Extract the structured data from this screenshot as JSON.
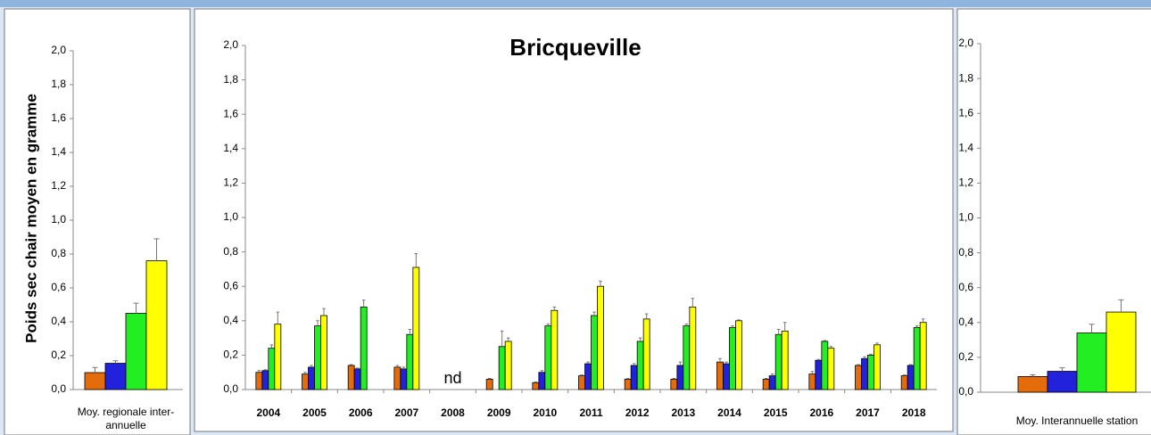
{
  "chart_data": [
    {
      "type": "bar",
      "ylabel": "Poids sec chair moyen en gramme",
      "categories": [
        "Moy. regionale inter-annuelle"
      ],
      "series": [
        {
          "color": "#e46c0a",
          "values": [
            0.1
          ],
          "errors": [
            0.03
          ]
        },
        {
          "color": "#2222dd",
          "values": [
            0.155
          ],
          "errors": [
            0.015
          ]
        },
        {
          "color": "#22ee22",
          "values": [
            0.45
          ],
          "errors": [
            0.06
          ]
        },
        {
          "color": "#ffff00",
          "values": [
            0.76
          ],
          "errors": [
            0.13
          ]
        }
      ],
      "ylim": [
        0,
        2
      ],
      "yticks": [
        {
          "value": 0,
          "label": "0,0"
        },
        {
          "value": 0.2,
          "label": "0,2"
        },
        {
          "value": 0.4,
          "label": "0,4"
        },
        {
          "value": 0.6,
          "label": "0,6"
        },
        {
          "value": 0.8,
          "label": "0,8"
        },
        {
          "value": 1,
          "label": "1,0"
        },
        {
          "value": 1.2,
          "label": "1,2"
        },
        {
          "value": 1.4,
          "label": "1,4"
        },
        {
          "value": 1.6,
          "label": "1,6"
        },
        {
          "value": 1.8,
          "label": "1,8"
        },
        {
          "value": 2,
          "label": "2,0"
        }
      ]
    },
    {
      "type": "bar",
      "title": "Bricqueville",
      "annotation": "nd",
      "categories": [
        "2004",
        "2005",
        "2006",
        "2007",
        "2008",
        "2009",
        "2010",
        "2011",
        "2012",
        "2013",
        "2014",
        "2015",
        "2016",
        "2017",
        "2018"
      ],
      "series": [
        {
          "color": "#e46c0a",
          "values": [
            0.1,
            0.09,
            0.14,
            0.13,
            null,
            0.06,
            0.04,
            0.08,
            0.06,
            0.06,
            0.16,
            0.06,
            0.09,
            0.14,
            0.08
          ],
          "errors": [
            0.01,
            0.01,
            0.005,
            0.01,
            null,
            0.005,
            0.005,
            0.005,
            0.005,
            0.005,
            0.02,
            0.005,
            0.015,
            0.005,
            0.005
          ]
        },
        {
          "color": "#2222dd",
          "values": [
            0.11,
            0.13,
            0.12,
            0.12,
            null,
            null,
            0.1,
            0.15,
            0.14,
            0.14,
            0.15,
            0.08,
            0.17,
            0.18,
            0.14
          ],
          "errors": [
            0.005,
            0.01,
            0.005,
            0.01,
            null,
            null,
            0.01,
            0.01,
            0.01,
            0.02,
            0.01,
            0.01,
            0.005,
            0.01,
            0.005
          ]
        },
        {
          "color": "#22ee22",
          "values": [
            0.24,
            0.37,
            0.48,
            0.32,
            null,
            0.25,
            0.37,
            0.43,
            0.28,
            0.37,
            0.36,
            0.32,
            0.28,
            0.2,
            0.36
          ],
          "errors": [
            0.02,
            0.03,
            0.04,
            0.03,
            null,
            0.09,
            0.01,
            0.02,
            0.02,
            0.01,
            0.01,
            0.03,
            0.005,
            0.005,
            0.01
          ]
        },
        {
          "color": "#ffff00",
          "values": [
            0.38,
            0.43,
            null,
            0.71,
            null,
            0.28,
            0.46,
            0.6,
            0.41,
            0.48,
            0.4,
            0.34,
            0.24,
            0.26,
            0.39
          ],
          "errors": [
            0.07,
            0.04,
            null,
            0.08,
            null,
            0.02,
            0.02,
            0.03,
            0.03,
            0.05,
            0.005,
            0.05,
            0.01,
            0.01,
            0.02
          ]
        }
      ],
      "ylim": [
        0,
        2
      ],
      "yticks": [
        {
          "value": 0,
          "label": "0,0"
        },
        {
          "value": 0.2,
          "label": "0,2"
        },
        {
          "value": 0.4,
          "label": "0,4"
        },
        {
          "value": 0.6,
          "label": "0,6"
        },
        {
          "value": 0.8,
          "label": "0,8"
        },
        {
          "value": 1,
          "label": "1,0"
        },
        {
          "value": 1.2,
          "label": "1,2"
        },
        {
          "value": 1.4,
          "label": "1,4"
        },
        {
          "value": 1.6,
          "label": "1,6"
        },
        {
          "value": 1.8,
          "label": "1,8"
        },
        {
          "value": 2,
          "label": "2,0"
        }
      ]
    },
    {
      "type": "bar",
      "categories": [
        "Moy. Interannuelle station"
      ],
      "series": [
        {
          "color": "#e46c0a",
          "values": [
            0.09
          ],
          "errors": [
            0.01
          ]
        },
        {
          "color": "#2222dd",
          "values": [
            0.12
          ],
          "errors": [
            0.02
          ]
        },
        {
          "color": "#22ee22",
          "values": [
            0.34
          ],
          "errors": [
            0.05
          ]
        },
        {
          "color": "#ffff00",
          "values": [
            0.46
          ],
          "errors": [
            0.07
          ]
        }
      ],
      "ylim": [
        0,
        2
      ],
      "yticks": [
        {
          "value": 0,
          "label": "0,0"
        },
        {
          "value": 0.2,
          "label": "0,2"
        },
        {
          "value": 0.4,
          "label": "0,4"
        },
        {
          "value": 0.6,
          "label": "0,6"
        },
        {
          "value": 0.8,
          "label": "0,8"
        },
        {
          "value": 1,
          "label": "1,0"
        },
        {
          "value": 1.2,
          "label": "1,2"
        },
        {
          "value": 1.4,
          "label": "1,4"
        },
        {
          "value": 1.6,
          "label": "1,6"
        },
        {
          "value": 1.8,
          "label": "1,8"
        },
        {
          "value": 2,
          "label": "2,0"
        }
      ]
    }
  ]
}
